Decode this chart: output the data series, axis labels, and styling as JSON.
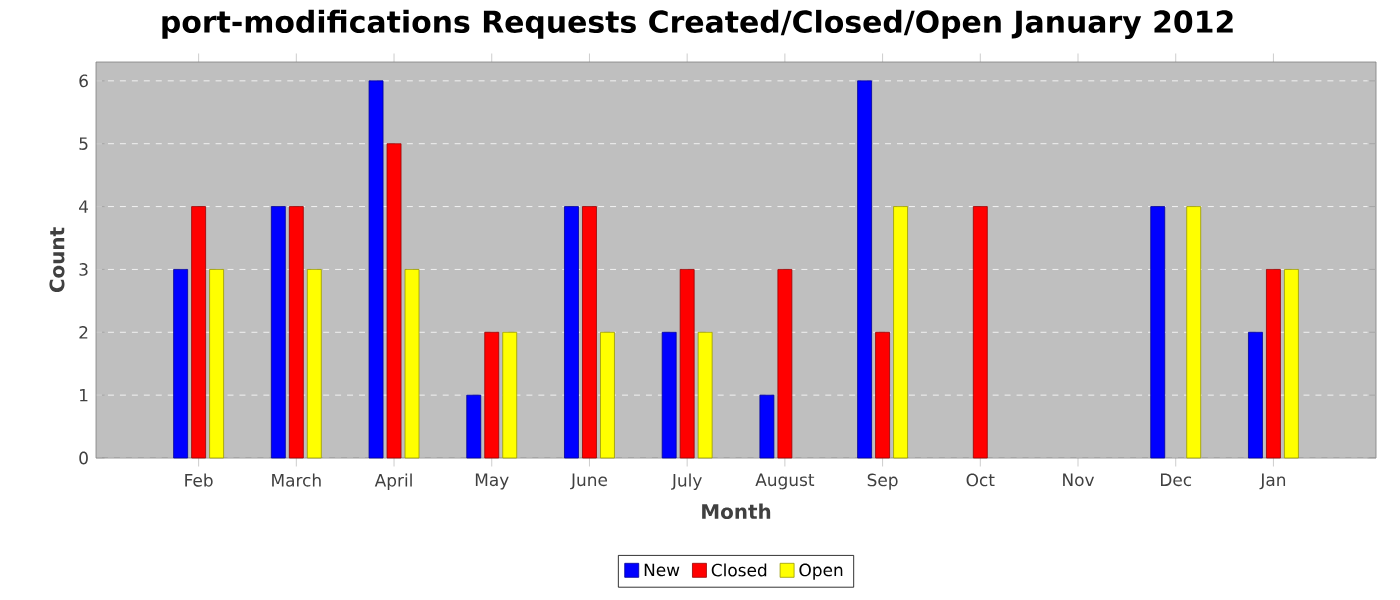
{
  "chart_data": {
    "type": "bar",
    "title": "port-modifications Requests Created/Closed/Open January 2012",
    "xlabel": "Month",
    "ylabel": "Count",
    "categories": [
      "Feb",
      "March",
      "April",
      "May",
      "June",
      "July",
      "August",
      "Sep",
      "Oct",
      "Nov",
      "Dec",
      "Jan"
    ],
    "series": [
      {
        "name": "New",
        "color": "#0000ff",
        "values": [
          3,
          4,
          6,
          1,
          4,
          2,
          1,
          6,
          null,
          null,
          4,
          2
        ]
      },
      {
        "name": "Closed",
        "color": "#ff0000",
        "values": [
          4,
          4,
          5,
          2,
          4,
          3,
          3,
          2,
          4,
          null,
          null,
          3
        ]
      },
      {
        "name": "Open",
        "color": "#ffff00",
        "values": [
          3,
          3,
          3,
          2,
          2,
          2,
          null,
          4,
          null,
          null,
          4,
          3
        ]
      }
    ],
    "ylim": [
      0,
      6.3
    ],
    "yticks": [
      0,
      1,
      2,
      3,
      4,
      5,
      6
    ],
    "grid": "y",
    "legend": "bottom"
  }
}
